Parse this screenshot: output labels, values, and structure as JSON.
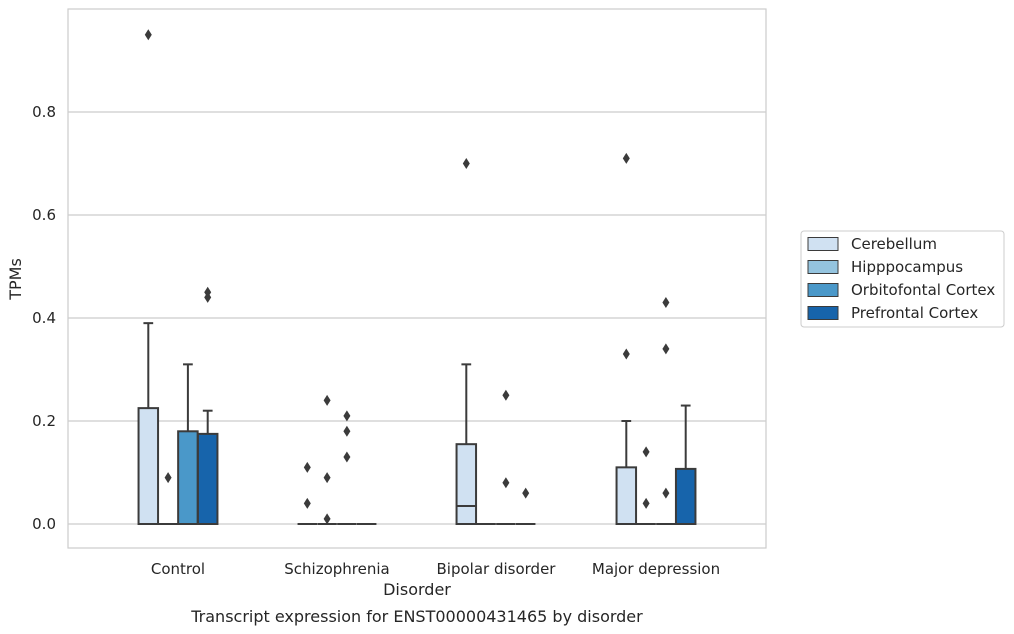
{
  "chart_data": {
    "type": "box",
    "xlabel": "Disorder",
    "ylabel": "TPMs",
    "caption": "Transcript expression for ENST00000431465 by disorder",
    "ylim": [
      -0.045,
      0.99
    ],
    "yticks": [
      "0.0",
      "0.2",
      "0.4",
      "0.6",
      "0.8"
    ],
    "grid": "horizontal",
    "legend_position": "right",
    "categories": [
      "Control",
      "Schizophrenia",
      "Bipolar disorder",
      "Major depression"
    ],
    "series": [
      {
        "name": "Cerebellum",
        "color": "#d0e1f2",
        "boxes": [
          {
            "q1": 0.0,
            "median": 0.0,
            "q3": 0.225,
            "whislo": 0.0,
            "whishi": 0.39,
            "fliers": [
              0.95
            ]
          },
          {
            "q1": 0.0,
            "median": 0.0,
            "q3": 0.0,
            "whislo": 0.0,
            "whishi": 0.0,
            "fliers": [
              0.11,
              0.04
            ]
          },
          {
            "q1": 0.0,
            "median": 0.035,
            "q3": 0.155,
            "whislo": 0.0,
            "whishi": 0.31,
            "fliers": [
              0.7
            ]
          },
          {
            "q1": 0.0,
            "median": 0.0,
            "q3": 0.11,
            "whislo": 0.0,
            "whishi": 0.2,
            "fliers": [
              0.71,
              0.33
            ]
          }
        ]
      },
      {
        "name": "Hipppocampus",
        "color": "#94c4df",
        "boxes": [
          {
            "q1": 0.0,
            "median": 0.0,
            "q3": 0.0,
            "whislo": 0.0,
            "whishi": 0.0,
            "fliers": [
              0.09
            ]
          },
          {
            "q1": 0.0,
            "median": 0.0,
            "q3": 0.0,
            "whislo": 0.0,
            "whishi": 0.0,
            "fliers": [
              0.24,
              0.09,
              0.01
            ]
          },
          {
            "q1": 0.0,
            "median": 0.0,
            "q3": 0.0,
            "whislo": 0.0,
            "whishi": 0.0,
            "fliers": []
          },
          {
            "q1": 0.0,
            "median": 0.0,
            "q3": 0.0,
            "whislo": 0.0,
            "whishi": 0.0,
            "fliers": [
              0.14,
              0.04
            ]
          }
        ]
      },
      {
        "name": "Orbitofontal Cortex",
        "color": "#4a98c9",
        "boxes": [
          {
            "q1": 0.0,
            "median": 0.0,
            "q3": 0.18,
            "whislo": 0.0,
            "whishi": 0.31,
            "fliers": []
          },
          {
            "q1": 0.0,
            "median": 0.0,
            "q3": 0.0,
            "whislo": 0.0,
            "whishi": 0.0,
            "fliers": [
              0.21,
              0.18,
              0.13
            ]
          },
          {
            "q1": 0.0,
            "median": 0.0,
            "q3": 0.0,
            "whislo": 0.0,
            "whishi": 0.0,
            "fliers": [
              0.25,
              0.08
            ]
          },
          {
            "q1": 0.0,
            "median": 0.0,
            "q3": 0.0,
            "whislo": 0.0,
            "whishi": 0.0,
            "fliers": [
              0.43,
              0.34,
              0.06
            ]
          }
        ]
      },
      {
        "name": "Prefrontal Cortex",
        "color": "#1764ab",
        "boxes": [
          {
            "q1": 0.0,
            "median": 0.0,
            "q3": 0.175,
            "whislo": 0.0,
            "whishi": 0.22,
            "fliers": [
              0.45,
              0.44
            ]
          },
          {
            "q1": 0.0,
            "median": 0.0,
            "q3": 0.0,
            "whislo": 0.0,
            "whishi": 0.0,
            "fliers": []
          },
          {
            "q1": 0.0,
            "median": 0.0,
            "q3": 0.0,
            "whislo": 0.0,
            "whishi": 0.0,
            "fliers": [
              0.06
            ]
          },
          {
            "q1": 0.0,
            "median": 0.0,
            "q3": 0.107,
            "whislo": 0.0,
            "whishi": 0.23,
            "fliers": []
          }
        ]
      }
    ]
  }
}
